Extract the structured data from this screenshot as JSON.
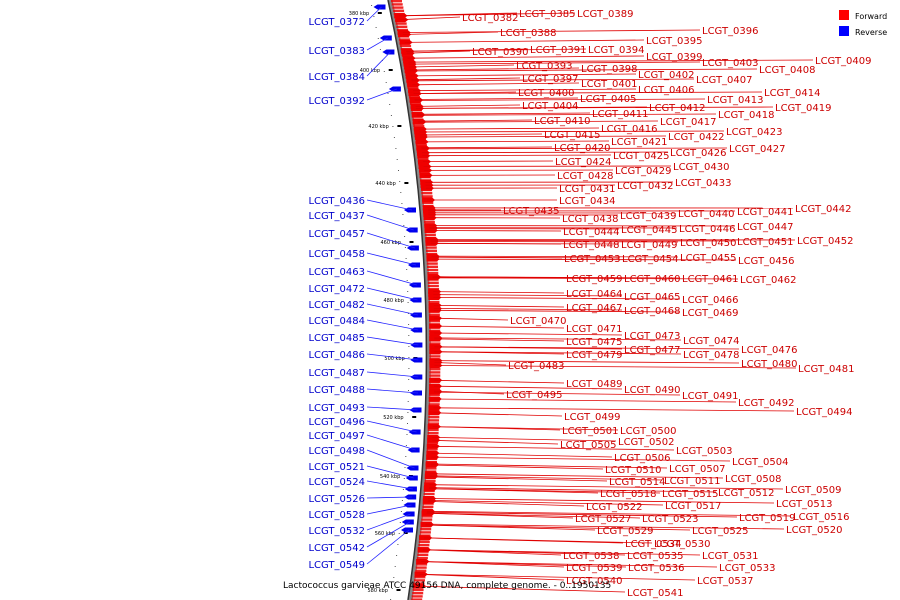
{
  "caption": "Lactococcus garvieae ATCC 49156 DNA, complete genome. - 0..1950135",
  "legend": [
    {
      "label": "Forward",
      "color": "#ff0000"
    },
    {
      "label": "Reverse",
      "color": "#0000ff"
    }
  ],
  "tick_labels": [
    "380 kbp",
    "400 kbp",
    "420 kbp",
    "440 kbp",
    "460 kbp",
    "480 kbp",
    "500 kbp",
    "520 kbp",
    "540 kbp",
    "560 kbp",
    "580 kbp"
  ],
  "reverse_genes": [
    "LCGT_0372",
    "LCGT_0383",
    "LCGT_0384",
    "LCGT_0392",
    "LCGT_0436",
    "LCGT_0437",
    "LCGT_0457",
    "LCGT_0458",
    "LCGT_0463",
    "LCGT_0472",
    "LCGT_0482",
    "LCGT_0484",
    "LCGT_0485",
    "LCGT_0486",
    "LCGT_0487",
    "LCGT_0488",
    "LCGT_0493",
    "LCGT_0496",
    "LCGT_0497",
    "LCGT_0498",
    "LCGT_0521",
    "LCGT_0524",
    "LCGT_0526",
    "LCGT_0528",
    "LCGT_0532",
    "LCGT_0542",
    "LCGT_0549"
  ],
  "forward_genes": [
    "LCGT_0382",
    "LCGT_0385",
    "LCGT_0389",
    "LCGT_0388",
    "LCGT_0396",
    "LCGT_0395",
    "LCGT_0390",
    "LCGT_0391",
    "LCGT_0394",
    "LCGT_0399",
    "LCGT_0409",
    "LCGT_0403",
    "LCGT_0408",
    "LCGT_0393",
    "LCGT_0398",
    "LCGT_0402",
    "LCGT_0397",
    "LCGT_0401",
    "LCGT_0407",
    "LCGT_0414",
    "LCGT_0400",
    "LCGT_0405",
    "LCGT_0406",
    "LCGT_0413",
    "LCGT_0419",
    "LCGT_0404",
    "LCGT_0412",
    "LCGT_0418",
    "LCGT_0410",
    "LCGT_0411",
    "LCGT_0417",
    "LCGT_0415",
    "LCGT_0416",
    "LCGT_0423",
    "LCGT_0420",
    "LCGT_0421",
    "LCGT_0422",
    "LCGT_0427",
    "LCGT_0426",
    "LCGT_0425",
    "LCGT_0424",
    "LCGT_0429",
    "LCGT_0430",
    "LCGT_0428",
    "LCGT_0433",
    "LCGT_0431",
    "LCGT_0432",
    "LCGT_0434",
    "LCGT_0442",
    "LCGT_0435",
    "LCGT_0438",
    "LCGT_0439",
    "LCGT_0440",
    "LCGT_0441",
    "LCGT_0447",
    "LCGT_0444",
    "LCGT_0445",
    "LCGT_0446",
    "LCGT_0452",
    "LCGT_0448",
    "LCGT_0449",
    "LCGT_0450",
    "LCGT_0451",
    "LCGT_0456",
    "LCGT_0453",
    "LCGT_0454",
    "LCGT_0455",
    "LCGT_0459",
    "LCGT_0460",
    "LCGT_0461",
    "LCGT_0462",
    "LCGT_0464",
    "LCGT_0465",
    "LCGT_0466",
    "LCGT_0467",
    "LCGT_0468",
    "LCGT_0469",
    "LCGT_0470",
    "LCGT_0471",
    "LCGT_0473",
    "LCGT_0474",
    "LCGT_0475",
    "LCGT_0477",
    "LCGT_0476",
    "LCGT_0479",
    "LCGT_0478",
    "LCGT_0480",
    "LCGT_0483",
    "LCGT_0481",
    "LCGT_0489",
    "LCGT_0490",
    "LCGT_0491",
    "LCGT_0495",
    "LCGT_0492",
    "LCGT_0494",
    "LCGT_0499",
    "LCGT_0501",
    "LCGT_0500",
    "LCGT_0502",
    "LCGT_0505",
    "LCGT_0503",
    "LCGT_0506",
    "LCGT_0504",
    "LCGT_0510",
    "LCGT_0507",
    "LCGT_0514",
    "LCGT_0511",
    "LCGT_0508",
    "LCGT_0518",
    "LCGT_0515",
    "LCGT_0512",
    "LCGT_0509",
    "LCGT_0517",
    "LCGT_0513",
    "LCGT_0522",
    "LCGT_0519",
    "LCGT_0516",
    "LCGT_0527",
    "LCGT_0523",
    "LCGT_0525",
    "LCGT_0520",
    "LCGT_0529",
    "LCGT_0534",
    "LCGT_0530",
    "LCGT_0531",
    "LCGT_0538",
    "LCGT_0535",
    "LCGT_0533",
    "LCGT_0539",
    "LCGT_0536",
    "LCGT_0537",
    "LCGT_0540",
    "LCGT_0541"
  ]
}
